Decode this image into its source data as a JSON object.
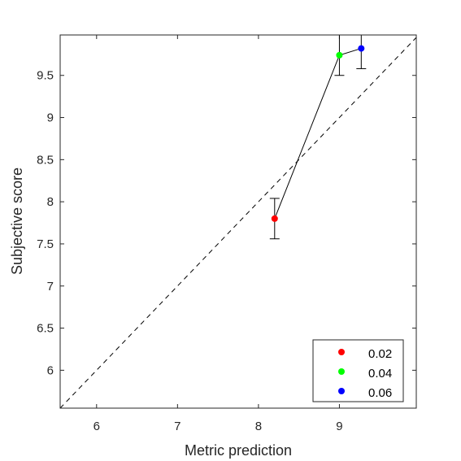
{
  "chart_data": {
    "type": "scatter",
    "xlabel": "Metric prediction",
    "ylabel": "Subjective score",
    "xlim": [
      5.55,
      9.95
    ],
    "ylim": [
      5.55,
      9.98
    ],
    "xticks": [
      "6",
      "7",
      "8",
      "9"
    ],
    "yticks": [
      "6",
      "6.5",
      "7",
      "7.5",
      "8",
      "8.5",
      "9",
      "9.5"
    ],
    "grid": false,
    "legend_position": "bottom-right",
    "reference_line": {
      "style": "dashed",
      "description": "identity y = x"
    },
    "connect_points": true,
    "series": [
      {
        "name": "0.02",
        "color": "#ff0000",
        "x": 8.2,
        "y": 7.8,
        "err_low": 7.56,
        "err_high": 8.04
      },
      {
        "name": "0.04",
        "color": "#00ff00",
        "x": 9.0,
        "y": 9.74,
        "err_low": 9.5,
        "err_high": 9.98
      },
      {
        "name": "0.06",
        "color": "#0000ff",
        "x": 9.27,
        "y": 9.82,
        "err_low": 9.58,
        "err_high": 9.98
      }
    ]
  }
}
